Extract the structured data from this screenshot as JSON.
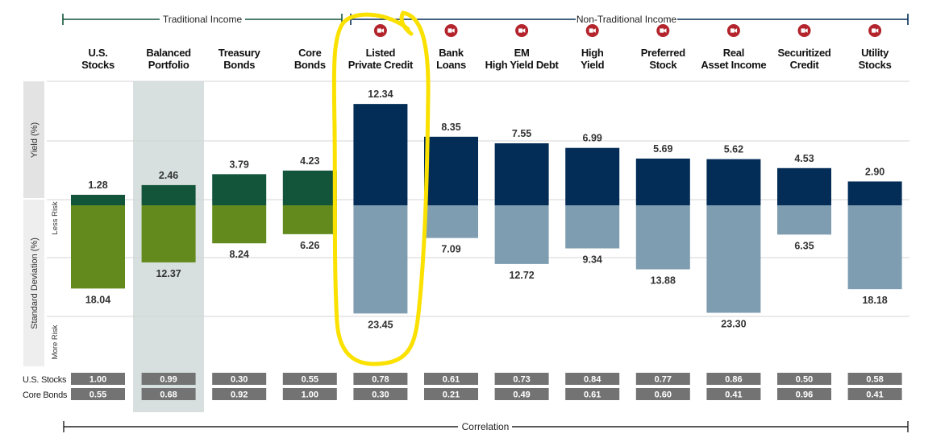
{
  "header": {
    "traditional": "Traditional Income",
    "non_traditional": "Non-Traditional Income"
  },
  "axes": {
    "yield_label": "Yield (%)",
    "stdev_label": "Standard Deviation (%)",
    "less_risk": "Less Risk",
    "more_risk": "More Risk",
    "correlation_label": "Correlation"
  },
  "correlation_rows": [
    "U.S. Stocks",
    "Core Bonds"
  ],
  "colors": {
    "traditional_yield": "#13553b",
    "traditional_stdev": "#628a1c",
    "nontraditional_yield": "#032d57",
    "nontraditional_stdev": "#7f9db0",
    "balanced_highlight": "#d7e0de",
    "video_icon": "#b3242c",
    "correlation_box": "#737373",
    "highlight_circle": "#fae100"
  },
  "chart_data": {
    "type": "bar",
    "categories": [
      {
        "id": "us-stocks",
        "label": [
          "U.S.",
          "Stocks"
        ],
        "group": "traditional",
        "video": false
      },
      {
        "id": "balanced-portfolio",
        "label": [
          "Balanced",
          "Portfolio"
        ],
        "group": "traditional",
        "video": false,
        "highlight": true
      },
      {
        "id": "treasury-bonds",
        "label": [
          "Treasury",
          "Bonds"
        ],
        "group": "traditional",
        "video": false
      },
      {
        "id": "core-bonds",
        "label": [
          "Core",
          "Bonds"
        ],
        "group": "traditional",
        "video": false
      },
      {
        "id": "listed-private-credit",
        "label": [
          "Listed",
          "Private Credit"
        ],
        "group": "non-traditional",
        "video": true,
        "circled": true
      },
      {
        "id": "bank-loans",
        "label": [
          "Bank",
          "Loans"
        ],
        "group": "non-traditional",
        "video": true
      },
      {
        "id": "em-high-yield-debt",
        "label": [
          "EM",
          "High Yield Debt"
        ],
        "group": "non-traditional",
        "video": true
      },
      {
        "id": "high-yield",
        "label": [
          "High",
          "Yield"
        ],
        "group": "non-traditional",
        "video": true
      },
      {
        "id": "preferred-stock",
        "label": [
          "Preferred",
          "Stock"
        ],
        "group": "non-traditional",
        "video": true
      },
      {
        "id": "real-asset-income",
        "label": [
          "Real",
          "Asset Income"
        ],
        "group": "non-traditional",
        "video": true
      },
      {
        "id": "securitized-credit",
        "label": [
          "Securitized",
          "Credit"
        ],
        "group": "non-traditional",
        "video": true
      },
      {
        "id": "utility-stocks",
        "label": [
          "Utility",
          "Stocks"
        ],
        "group": "non-traditional",
        "video": true
      }
    ],
    "yield": [
      1.28,
      2.46,
      3.79,
      4.23,
      12.34,
      8.35,
      7.55,
      6.99,
      5.69,
      5.62,
      4.53,
      2.9
    ],
    "yield_labels": [
      "1.28",
      "2.46",
      "3.79",
      "4.23",
      "12.34",
      "8.35",
      "7.55",
      "6.99",
      "5.69",
      "5.62",
      "4.53",
      "2.90"
    ],
    "std_dev": [
      18.04,
      12.37,
      8.24,
      6.26,
      23.45,
      7.09,
      12.72,
      9.34,
      13.88,
      23.3,
      6.35,
      18.18
    ],
    "std_dev_labels": [
      "18.04",
      "12.37",
      "8.24",
      "6.26",
      "23.45",
      "7.09",
      "12.72",
      "9.34",
      "13.88",
      "23.30",
      "6.35",
      "18.18"
    ],
    "corr_us_stocks": [
      "1.00",
      "0.99",
      "0.30",
      "0.55",
      "0.78",
      "0.61",
      "0.73",
      "0.84",
      "0.77",
      "0.86",
      "0.50",
      "0.58"
    ],
    "corr_core_bonds": [
      "0.55",
      "0.68",
      "0.92",
      "1.00",
      "0.30",
      "0.21",
      "0.49",
      "0.61",
      "0.60",
      "0.41",
      "0.96",
      "0.41"
    ],
    "grid": true
  }
}
